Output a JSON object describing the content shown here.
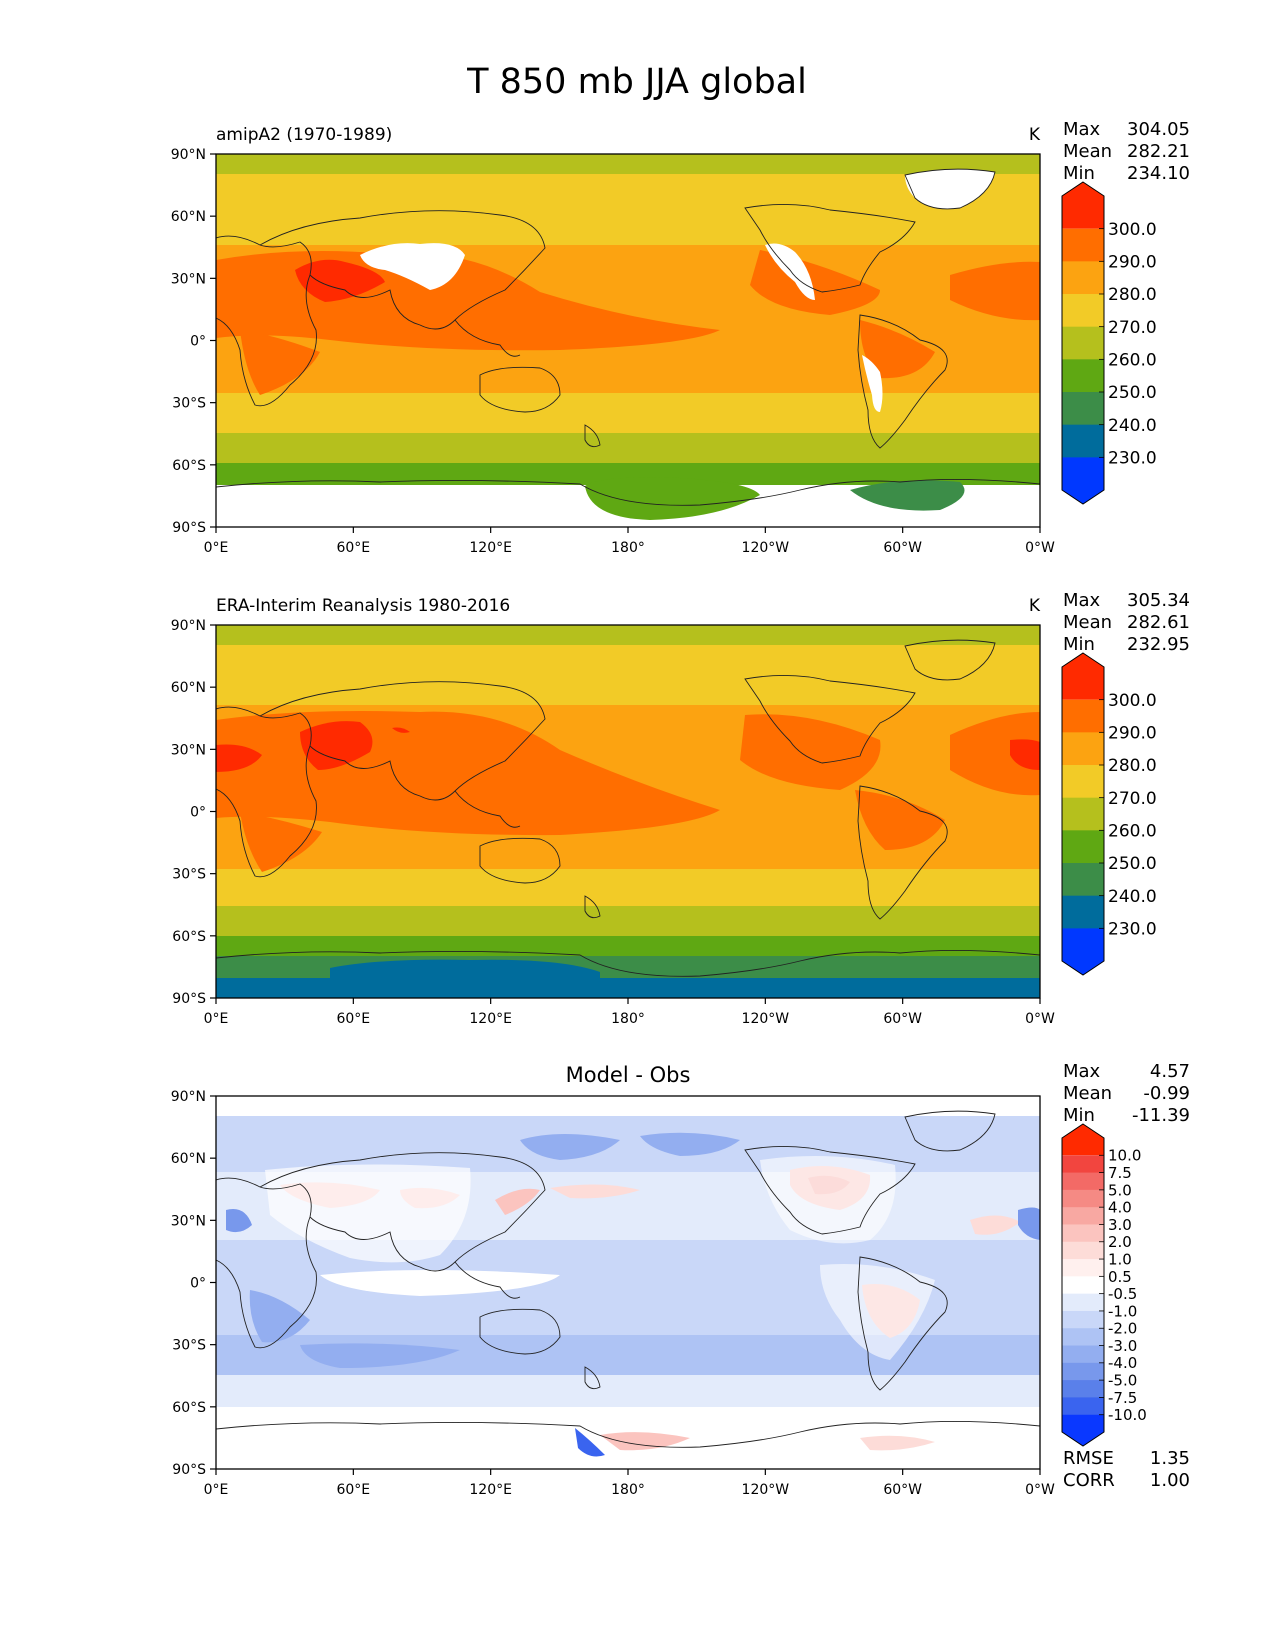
{
  "figure": {
    "title": "T 850 mb JJA global"
  },
  "chart_data": [
    {
      "type": "heatmap",
      "title": "",
      "left_title": "amipA2 (1970-1989)",
      "units": "K",
      "stats": {
        "labels": [
          "Max",
          "Mean",
          "Min"
        ],
        "values": [
          "304.05",
          "282.21",
          "234.10"
        ]
      },
      "x_ticks": [
        "0°E",
        "60°E",
        "120°E",
        "180°",
        "120°W",
        "60°W",
        "0°W"
      ],
      "y_ticks": [
        "90°N",
        "60°N",
        "30°N",
        "0°",
        "30°S",
        "60°S",
        "90°S"
      ],
      "xlim": [
        0,
        360
      ],
      "ylim": [
        -90,
        90
      ],
      "colorbar": {
        "ticks": [
          "300.0",
          "290.0",
          "280.0",
          "270.0",
          "260.0",
          "250.0",
          "240.0",
          "230.0"
        ],
        "colors": [
          "#ff2a00",
          "#ff6e00",
          "#fca311",
          "#f2cb27",
          "#b5c01d",
          "#5fa813",
          "#3c8d48",
          "#006c9c",
          "#0038ff"
        ]
      }
    },
    {
      "type": "heatmap",
      "title": "",
      "left_title": "ERA-Interim Reanalysis 1980-2016",
      "units": "K",
      "stats": {
        "labels": [
          "Max",
          "Mean",
          "Min"
        ],
        "values": [
          "305.34",
          "282.61",
          "232.95"
        ]
      },
      "x_ticks": [
        "0°E",
        "60°E",
        "120°E",
        "180°",
        "120°W",
        "60°W",
        "0°W"
      ],
      "y_ticks": [
        "90°N",
        "60°N",
        "30°N",
        "0°",
        "30°S",
        "60°S",
        "90°S"
      ],
      "xlim": [
        0,
        360
      ],
      "ylim": [
        -90,
        90
      ],
      "colorbar": {
        "ticks": [
          "300.0",
          "290.0",
          "280.0",
          "270.0",
          "260.0",
          "250.0",
          "240.0",
          "230.0"
        ],
        "colors": [
          "#ff2a00",
          "#ff6e00",
          "#fca311",
          "#f2cb27",
          "#b5c01d",
          "#5fa813",
          "#3c8d48",
          "#006c9c",
          "#0038ff"
        ]
      }
    },
    {
      "type": "heatmap",
      "title": "Model - Obs",
      "left_title": "",
      "units": "",
      "stats": {
        "labels": [
          "Max",
          "Mean",
          "Min"
        ],
        "values": [
          "4.57",
          "-0.99",
          "-11.39"
        ]
      },
      "extra_stats": {
        "labels": [
          "RMSE",
          "CORR"
        ],
        "values": [
          "1.35",
          "1.00"
        ]
      },
      "x_ticks": [
        "0°E",
        "60°E",
        "120°E",
        "180°",
        "120°W",
        "60°W",
        "0°W"
      ],
      "y_ticks": [
        "90°N",
        "60°N",
        "30°N",
        "0°",
        "30°S",
        "60°S",
        "90°S"
      ],
      "xlim": [
        0,
        360
      ],
      "ylim": [
        -90,
        90
      ],
      "colorbar": {
        "ticks": [
          "10.0",
          "7.5",
          "5.0",
          "4.0",
          "3.0",
          "2.0",
          "1.0",
          "0.5",
          "-0.5",
          "-1.0",
          "-2.0",
          "-3.0",
          "-4.0",
          "-5.0",
          "-7.5",
          "-10.0"
        ],
        "colors": [
          "#ff2a00",
          "#f2453f",
          "#f36a66",
          "#f58a84",
          "#f8a8a2",
          "#fbc4bf",
          "#fddcd8",
          "#fff0ee",
          "#ffffff",
          "#e3ebfb",
          "#c9d7f8",
          "#aec3f4",
          "#93aef0",
          "#7898ec",
          "#5a80ea",
          "#3a64ef",
          "#0a38ff"
        ]
      }
    }
  ]
}
